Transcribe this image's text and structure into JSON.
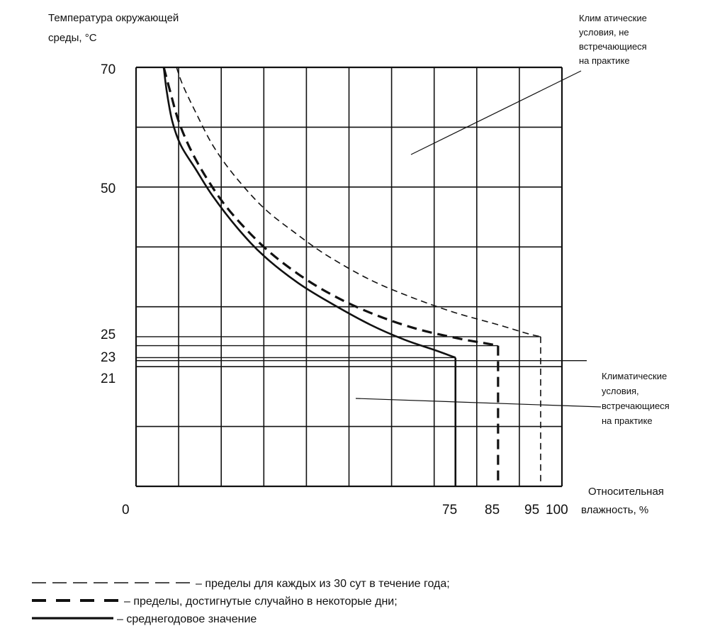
{
  "chart_data": {
    "type": "line",
    "ylabel": [
      "Температура окружающей",
      "среды, °С"
    ],
    "xlabel": [
      "Относительная",
      "влажность, %"
    ],
    "origin_label": "0",
    "x_tick_labels": [
      "75",
      "85",
      "95",
      "100"
    ],
    "y_tick_labels": [
      "70",
      "50",
      "25",
      "23",
      "21"
    ],
    "xlim": [
      0,
      100
    ],
    "ylim": [
      0,
      70
    ],
    "grid": true,
    "series": [
      {
        "style": "short-dash",
        "limit_x": 95,
        "limit_y": 25,
        "x": [
          9.5,
          11,
          14,
          18,
          23,
          30,
          38,
          45,
          55,
          65,
          75,
          85,
          92,
          95
        ],
        "y": [
          70,
          67,
          62.5,
          57,
          52,
          46.5,
          42,
          38.5,
          34.5,
          31.5,
          29,
          27,
          25.5,
          25
        ]
      },
      {
        "style": "long-dash",
        "limit_x": 85,
        "limit_y": 23.5,
        "x": [
          6.5,
          8,
          10,
          13,
          17,
          22,
          30,
          38,
          46,
          55,
          65,
          75,
          82,
          85
        ],
        "y": [
          70,
          66,
          61,
          56,
          51,
          46,
          40,
          35.5,
          32,
          29,
          26.5,
          24.8,
          23.9,
          23.5
        ]
      },
      {
        "style": "solid",
        "limit_x": 75,
        "limit_y": 21.5,
        "x": [
          6.5,
          7.2,
          8.5,
          10.5,
          14,
          18,
          24,
          30,
          38,
          46,
          55,
          63,
          70,
          75
        ],
        "y": [
          70,
          66,
          61,
          57,
          53,
          48.5,
          43,
          38.5,
          34,
          30.5,
          27,
          24.5,
          22.8,
          21.5
        ]
      }
    ],
    "annotations": [
      {
        "id": "not-encountered",
        "lines": [
          "Клим атические",
          "условия, не",
          "встречающиеся",
          "на      практике"
        ]
      },
      {
        "id": "encountered",
        "lines": [
          "Климатические",
          "условия,",
          "встречающиеся",
          "на практике"
        ]
      }
    ],
    "legend": [
      {
        "style": "short-dash",
        "label": "– пределы для каждых из 30 сут в течение года;"
      },
      {
        "style": "long-dash",
        "label": "– пределы, достигнутые случайно в некоторые дни;"
      },
      {
        "style": "solid",
        "label": "– среднегодовое значение"
      }
    ]
  }
}
